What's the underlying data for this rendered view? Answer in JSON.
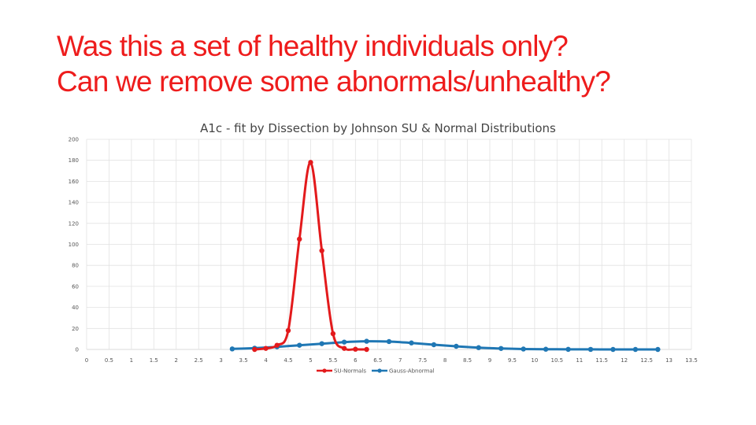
{
  "slide": {
    "title_line1": "Was this a set of healthy individuals only?",
    "title_line2": "Can we remove some abnormals/unhealthy?"
  },
  "colors": {
    "title": "#ee1c1c",
    "su_normals": "#e31a1c",
    "gauss_abnormal": "#1f77b4",
    "grid": "#e2e2e2"
  },
  "chart_data": {
    "type": "line",
    "title": "A1c - fit by Dissection by Johnson SU & Normal Distributions",
    "xlabel": "",
    "ylabel": "",
    "xlim": [
      0,
      13.5
    ],
    "ylim": [
      0,
      200
    ],
    "x_ticks": [
      0,
      0.5,
      1,
      1.5,
      2,
      2.5,
      3,
      3.5,
      4,
      4.5,
      5,
      5.5,
      6,
      6.5,
      7,
      7.5,
      8,
      8.5,
      9,
      9.5,
      10,
      10.5,
      11,
      11.5,
      12,
      12.5,
      13,
      13.5
    ],
    "x_tick_labels": [
      "0",
      "0.5",
      "1",
      "1.5",
      "2",
      "2.5",
      "3",
      "3.5",
      "4",
      "4.5",
      "5",
      "5.5",
      "6",
      "6.5",
      "7",
      "7.5",
      "8",
      "8.5",
      "9",
      "9.5",
      "10",
      "10.5",
      "11",
      "11.5",
      "12",
      "12.5",
      "13",
      "13.5"
    ],
    "y_ticks": [
      0,
      20,
      40,
      60,
      80,
      100,
      120,
      140,
      160,
      180,
      200
    ],
    "y_tick_labels": [
      "0",
      "20",
      "40",
      "60",
      "80",
      "100",
      "120",
      "140",
      "160",
      "180",
      "200"
    ],
    "grid": true,
    "legend_position": "bottom",
    "series": [
      {
        "name": "SU-Normals",
        "color": "#e31a1c",
        "x": [
          3.75,
          4.0,
          4.25,
          4.5,
          4.75,
          5.0,
          5.25,
          5.5,
          5.75,
          6.0,
          6.25
        ],
        "y": [
          0,
          1,
          4,
          18,
          105,
          178,
          94,
          15,
          1,
          0.2,
          0
        ]
      },
      {
        "name": "Gauss-Abnormal",
        "color": "#1f77b4",
        "x": [
          3.25,
          3.75,
          4.25,
          4.75,
          5.25,
          5.75,
          6.25,
          6.75,
          7.25,
          7.75,
          8.25,
          8.75,
          9.25,
          9.75,
          10.25,
          10.75,
          11.25,
          11.75,
          12.25,
          12.75
        ],
        "y": [
          0.5,
          1.2,
          2.5,
          4,
          5.5,
          7,
          7.8,
          7.5,
          6.2,
          4.5,
          3.0,
          1.7,
          0.9,
          0.4,
          0.2,
          0.1,
          0.05,
          0,
          0,
          0
        ]
      }
    ]
  }
}
